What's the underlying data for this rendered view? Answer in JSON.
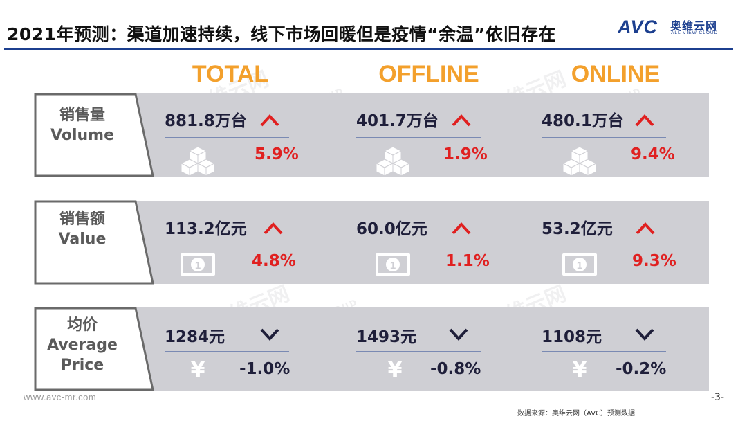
{
  "title": "2021年预测：渠道加速持续，线下市场回暖但是疫情“余温”依旧存在",
  "logo": {
    "brand": "AVC",
    "cn": "奥维云网",
    "en": "ALL VIEW CLOUD"
  },
  "watermark": {
    "cn": "奥维云网",
    "en": "ALL VIEW CLOUD"
  },
  "columns": [
    "TOTAL",
    "OFFLINE",
    "ONLINE"
  ],
  "rows": [
    {
      "label_cn": "销售量",
      "label_en": "Volume",
      "icon": "boxes-icon",
      "cells": [
        {
          "value": "881.8万台",
          "trend": "up",
          "pct": "5.9%"
        },
        {
          "value": "401.7万台",
          "trend": "up",
          "pct": "1.9%"
        },
        {
          "value": "480.1万台",
          "trend": "up",
          "pct": "9.4%"
        }
      ]
    },
    {
      "label_cn": "销售额",
      "label_en": "Value",
      "icon": "banknote-icon",
      "cells": [
        {
          "value": "113.2亿元",
          "trend": "up",
          "pct": "4.8%"
        },
        {
          "value": "60.0亿元",
          "trend": "up",
          "pct": "1.1%"
        },
        {
          "value": "53.2亿元",
          "trend": "up",
          "pct": "9.3%"
        }
      ]
    },
    {
      "label_cn": "均价",
      "label_en1": "Average",
      "label_en2": "Price",
      "icon": "yen-icon",
      "yen_symbol": "¥",
      "cells": [
        {
          "value": "1284元",
          "trend": "down",
          "pct": "-1.0%"
        },
        {
          "value": "1493元",
          "trend": "down",
          "pct": "-0.8%"
        },
        {
          "value": "1108元",
          "trend": "down",
          "pct": "-0.2%"
        }
      ]
    }
  ],
  "footer": {
    "url": "www.avc-mr.com",
    "page": "-3-",
    "source": "数据来源：奥维云网（AVC）预测数据"
  },
  "colors": {
    "accent": "#f3a02c",
    "brand": "#1c3f8f",
    "up": "#e02020",
    "down": "#1f1f3a",
    "band": "#cfcfd4"
  }
}
